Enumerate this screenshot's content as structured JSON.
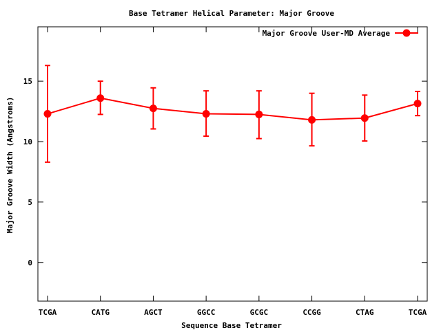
{
  "chart_data": {
    "type": "line",
    "title": "Base Tetramer Helical Parameter: Major Groove",
    "xlabel": "Sequence Base Tetramer",
    "ylabel": "Major Groove Width (Angstroms)",
    "categories": [
      "TCGA",
      "CATG",
      "AGCT",
      "GGCC",
      "GCGC",
      "CCGG",
      "CTAG",
      "TCGA"
    ],
    "ylim": [
      -3.2,
      19.5
    ],
    "yticks": [
      0,
      5,
      10,
      15
    ],
    "ytick_labels": [
      "0",
      "5",
      "10",
      "15"
    ],
    "grid": false,
    "legend_position": "top-right",
    "series": [
      {
        "name": "Major Groove User-MD Average",
        "color": "#ff0000",
        "values": [
          12.3,
          13.6,
          12.75,
          12.3,
          12.25,
          11.8,
          11.95,
          13.15
        ],
        "err_low": [
          8.3,
          12.25,
          11.05,
          10.45,
          10.25,
          9.65,
          10.05,
          12.15
        ],
        "err_high": [
          16.3,
          15.0,
          14.45,
          14.2,
          14.2,
          14.0,
          13.85,
          14.15
        ]
      }
    ]
  }
}
